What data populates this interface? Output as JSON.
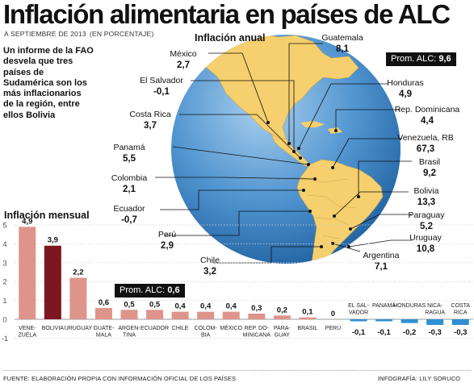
{
  "header": {
    "title": "Inflación alimentaria en países de ALC",
    "date": "A SEPTIEMBRE DE 2013",
    "unit": "(EN PORCENTAJE)"
  },
  "intro": "Un informe de la FAO desvela que tres países de Sudamérica son los más inflacionarios de la región, entre ellos Bolivia",
  "map_section": {
    "title": "Inflación anual",
    "average_label": "Prom. ALC:",
    "average_value": "9,6"
  },
  "bar_section": {
    "title": "Inflación mensual",
    "average_label": "Prom. ALC:",
    "average_value": "0,6"
  },
  "footer": {
    "source": "FUENTE: ELABORACIÓN PROPIA CON INFORMACIÓN OFICIAL DE LOS PAÍSES",
    "credit": "INFOGRAFÍA: LILY SORUCO"
  },
  "colors": {
    "ocean": "#4f93cf",
    "land": "#f6cf6e",
    "bar_pos": "#de948b",
    "bar_bolivia": "#7c1620",
    "bar_neg": "#2f8fd1",
    "average_box": "#111111"
  },
  "chart_data": [
    {
      "type": "table",
      "title": "Inflación anual",
      "columns": [
        "country",
        "value"
      ],
      "rows": [
        {
          "country": "Guatemala",
          "value": "8,1"
        },
        {
          "country": "México",
          "value": "2,7"
        },
        {
          "country": "El Salvador",
          "value": "-0,1"
        },
        {
          "country": "Honduras",
          "value": "4,9"
        },
        {
          "country": "Costa Rica",
          "value": "3,7"
        },
        {
          "country": "Rep. Dominicana",
          "value": "4,4"
        },
        {
          "country": "Panamá",
          "value": "5,5"
        },
        {
          "country": "Venezuela, RB",
          "value": "67,3"
        },
        {
          "country": "Colombia",
          "value": "2,1"
        },
        {
          "country": "Brasil",
          "value": "9,2"
        },
        {
          "country": "Ecuador",
          "value": "-0,7"
        },
        {
          "country": "Bolivia",
          "value": "13,3"
        },
        {
          "country": "Perú",
          "value": "2,9"
        },
        {
          "country": "Paraguay",
          "value": "5,2"
        },
        {
          "country": "Uruguay",
          "value": "10,8"
        },
        {
          "country": "Chile",
          "value": "3,2"
        },
        {
          "country": "Argentina",
          "value": "7,1"
        }
      ]
    },
    {
      "type": "bar",
      "title": "Inflación mensual",
      "categories": [
        "VENE- ZUELA",
        "BOLIVIA",
        "URUGUAY",
        "GUATE- MALA",
        "ARGEN- TINA",
        "ECUADOR",
        "CHILE",
        "COLOM- BIA",
        "MÉXICO",
        "REP. DO- MINICANA",
        "PARA- GUAY",
        "BRASIL",
        "PERÚ",
        "EL SAL- VADOR",
        "PANAMÁ",
        "HONDURAS",
        "NICA- RAGUA",
        "COSTA RICA"
      ],
      "values": [
        4.9,
        3.9,
        2.2,
        0.6,
        0.5,
        0.5,
        0.4,
        0.4,
        0.4,
        0.3,
        0.2,
        0.1,
        0,
        -0.1,
        -0.1,
        -0.2,
        -0.3,
        -0.3
      ],
      "value_labels": [
        "4,9",
        "3,9",
        "2,2",
        "0,6",
        "0,5",
        "0,5",
        "0,4",
        "0,4",
        "0,4",
        "0,3",
        "0,2",
        "0,1",
        "0",
        "-0,1",
        "-0,1",
        "-0,2",
        "-0,3",
        "-0,3"
      ],
      "highlight": "BOLIVIA",
      "ylim": [
        -0.5,
        5
      ],
      "yticks": [
        5,
        4,
        3,
        2,
        1,
        0,
        -1
      ],
      "grid": true
    }
  ]
}
